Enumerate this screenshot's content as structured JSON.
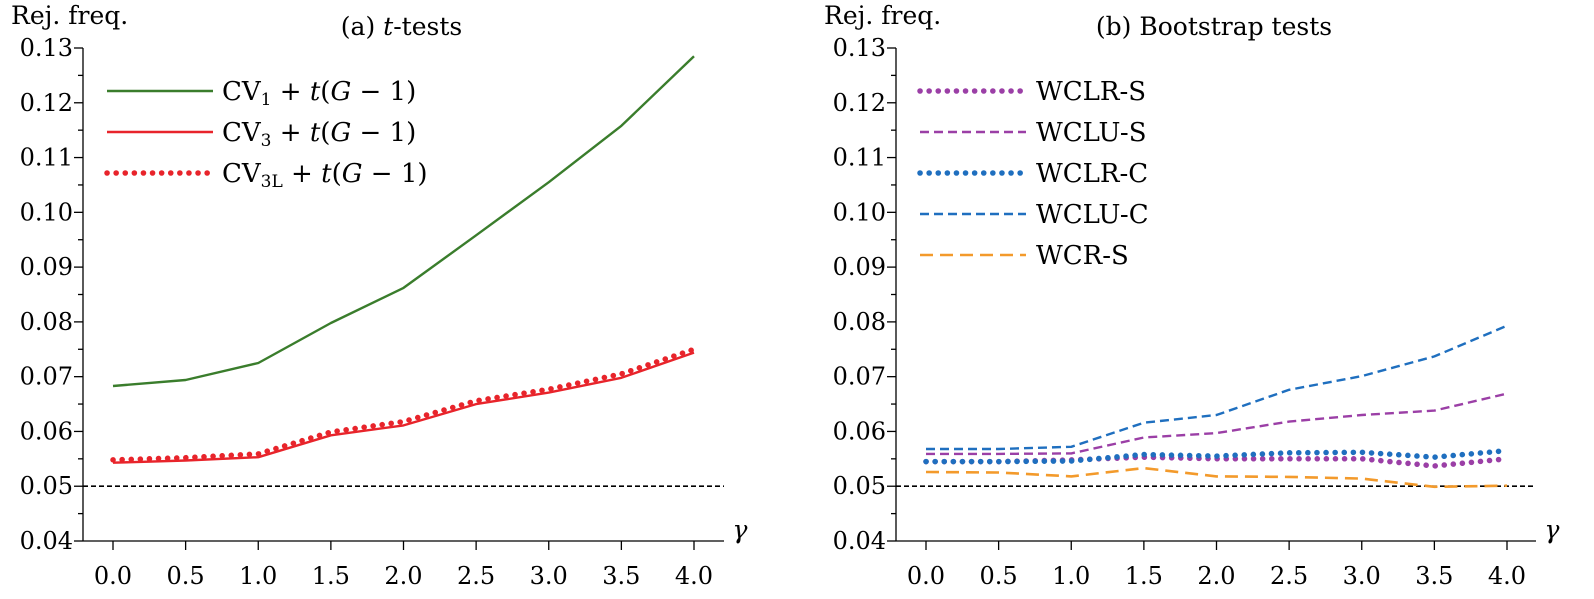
{
  "chart_data": [
    {
      "type": "line",
      "title": "(a) t-tests",
      "title_prefix": "(a) ",
      "title_italic": "t",
      "title_suffix": "-tests",
      "ylabel": "Rej. freq.",
      "xlabel": "γ",
      "x": [
        0.0,
        0.5,
        1.0,
        1.5,
        2.0,
        2.5,
        3.0,
        3.5,
        4.0
      ],
      "xticks": [
        "0.0",
        "0.5",
        "1.0",
        "1.5",
        "2.0",
        "2.5",
        "3.0",
        "3.5",
        "4.0"
      ],
      "ylim": [
        0.04,
        0.13
      ],
      "yticks": [
        "0.04",
        "0.05",
        "0.06",
        "0.07",
        "0.08",
        "0.09",
        "0.10",
        "0.11",
        "0.12",
        "0.13"
      ],
      "reference_line": 0.05,
      "legend_position": "top-left",
      "series": [
        {
          "name": "CV1 + t(G − 1)",
          "label_main": "CV",
          "label_sub": "1",
          "label_rest": " + t(G − 1)",
          "color": "#3a7d2c",
          "style": "solid",
          "values": [
            0.0683,
            0.0694,
            0.0725,
            0.0798,
            0.0862,
            0.0958,
            0.1055,
            0.1158,
            0.1285
          ]
        },
        {
          "name": "CV3 + t(G − 1)",
          "label_main": "CV",
          "label_sub": "3",
          "label_rest": " + t(G − 1)",
          "color": "#e8242b",
          "style": "solid",
          "values": [
            0.0543,
            0.0547,
            0.0553,
            0.0593,
            0.0611,
            0.065,
            0.0671,
            0.0698,
            0.0744
          ]
        },
        {
          "name": "CV3L + t(G − 1)",
          "label_main": "CV",
          "label_sub": "3L",
          "label_rest": " + t(G − 1)",
          "color": "#e8242b",
          "style": "dotted",
          "values": [
            0.0548,
            0.0552,
            0.0559,
            0.0599,
            0.0618,
            0.0656,
            0.0677,
            0.0705,
            0.075
          ]
        }
      ]
    },
    {
      "type": "line",
      "title": "(b) Bootstrap tests",
      "title_prefix": "(b) Bootstrap tests",
      "title_italic": "",
      "title_suffix": "",
      "ylabel": "Rej. freq.",
      "xlabel": "γ",
      "x": [
        0.0,
        0.5,
        1.0,
        1.5,
        2.0,
        2.5,
        3.0,
        3.5,
        4.0
      ],
      "xticks": [
        "0.0",
        "0.5",
        "1.0",
        "1.5",
        "2.0",
        "2.5",
        "3.0",
        "3.5",
        "4.0"
      ],
      "ylim": [
        0.04,
        0.13
      ],
      "yticks": [
        "0.04",
        "0.05",
        "0.06",
        "0.07",
        "0.08",
        "0.09",
        "0.10",
        "0.11",
        "0.12",
        "0.13"
      ],
      "reference_line": 0.05,
      "legend_position": "top-left",
      "series": [
        {
          "name": "WCLR-S",
          "label_main": "WCLR-S",
          "label_sub": "",
          "label_rest": "",
          "color": "#9b3fa6",
          "style": "dotted",
          "values": [
            0.0545,
            0.0545,
            0.0548,
            0.0553,
            0.055,
            0.055,
            0.055,
            0.0537,
            0.055
          ]
        },
        {
          "name": "WCLU-S",
          "label_main": "WCLU-S",
          "label_sub": "",
          "label_rest": "",
          "color": "#9b3fa6",
          "style": "dashed",
          "values": [
            0.0559,
            0.0559,
            0.056,
            0.0589,
            0.0597,
            0.0618,
            0.063,
            0.0638,
            0.0669
          ]
        },
        {
          "name": "WCLR-C",
          "label_main": "WCLR-C",
          "label_sub": "",
          "label_rest": "",
          "color": "#1f6fbf",
          "style": "dotted",
          "values": [
            0.0545,
            0.0545,
            0.0546,
            0.0558,
            0.0555,
            0.0561,
            0.0562,
            0.0553,
            0.0565
          ]
        },
        {
          "name": "WCLU-C",
          "label_main": "WCLU-C",
          "label_sub": "",
          "label_rest": "",
          "color": "#1f6fbf",
          "style": "dashed",
          "values": [
            0.0568,
            0.0568,
            0.0572,
            0.0616,
            0.063,
            0.0676,
            0.0701,
            0.0737,
            0.0793
          ]
        },
        {
          "name": "WCR-S",
          "label_main": "WCR-S",
          "label_sub": "",
          "label_rest": "",
          "color": "#f39a2b",
          "style": "longdash",
          "values": [
            0.0526,
            0.0525,
            0.0518,
            0.0533,
            0.0518,
            0.0517,
            0.0514,
            0.0499,
            0.0501
          ]
        }
      ]
    }
  ]
}
